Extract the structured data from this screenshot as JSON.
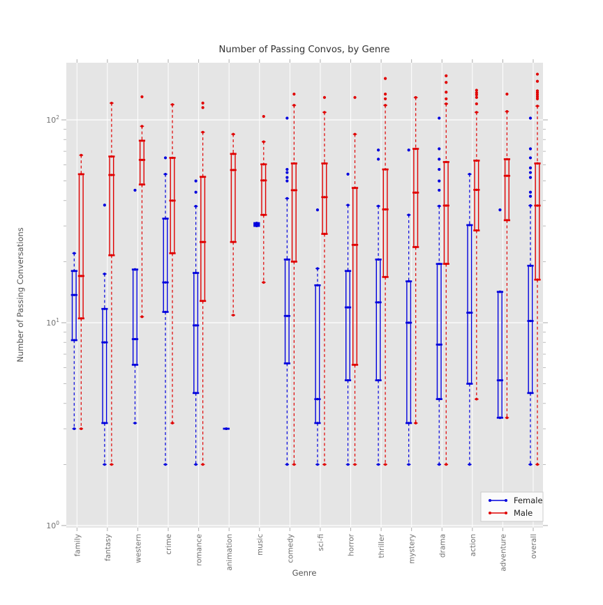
{
  "title": "Number of Passing Convos, by Genre",
  "axes": {
    "xlabel": "Genre",
    "ylabel": "Number of Passing Conversations",
    "yticks": [
      {
        "base": "10",
        "exp": "0",
        "value": 1
      },
      {
        "base": "10",
        "exp": "1",
        "value": 10
      },
      {
        "base": "10",
        "exp": "2",
        "value": 100
      }
    ],
    "ylim": [
      1,
      200
    ],
    "log_scale_y": true,
    "grid": true
  },
  "legend": {
    "items": [
      {
        "label": "Female",
        "color": "#0000dd"
      },
      {
        "label": "Male",
        "color": "#e00000"
      }
    ]
  },
  "colors": {
    "plot_bg": "#e5e5e5",
    "grid": "#ffffff",
    "tick": "#aaaaaa",
    "tick_label": "#707070",
    "axis_label": "#555555",
    "title": "#303030",
    "legend_bg": "#fbfbfb",
    "legend_border": "#cccccc"
  },
  "chart_data": {
    "type": "boxplot",
    "title": "Number of Passing Convos, by Genre",
    "xlabel": "Genre",
    "ylabel": "Number of Passing Conversations",
    "log_scale_y": true,
    "ylim": [
      1,
      200
    ],
    "legend_position": "lower right",
    "categories": [
      "family",
      "fantasy",
      "western",
      "crime",
      "romance",
      "animation",
      "music",
      "comedy",
      "sci-fi",
      "horror",
      "thriller",
      "mystery",
      "drama",
      "action",
      "adventure",
      "overall"
    ],
    "series": [
      {
        "name": "Female",
        "color": "#0000dd",
        "stats": [
          {
            "lo": 3,
            "q1": 8.2,
            "med": 13.7,
            "q3": 18,
            "hi": 22,
            "fliers": []
          },
          {
            "lo": 2,
            "q1": 3.2,
            "med": 8,
            "q3": 11.7,
            "hi": 17.4,
            "fliers": [
              38
            ]
          },
          {
            "lo": 3.2,
            "q1": 6.2,
            "med": 8.3,
            "q3": 18.3,
            "hi": 18.3,
            "fliers": [
              45
            ]
          },
          {
            "lo": 2,
            "q1": 11.3,
            "med": 15.8,
            "q3": 32.6,
            "hi": 54,
            "fliers": [
              65
            ]
          },
          {
            "lo": 2,
            "q1": 4.5,
            "med": 9.7,
            "q3": 17.6,
            "hi": 37.5,
            "fliers": [
              44,
              50
            ]
          },
          {
            "lo": 3,
            "q1": 3,
            "med": 3,
            "q3": 3,
            "hi": 3,
            "fliers": []
          },
          {
            "lo": 30,
            "q1": 30,
            "med": 30.5,
            "q3": 31,
            "hi": 31,
            "fliers": []
          },
          {
            "lo": 2,
            "q1": 6.3,
            "med": 10.8,
            "q3": 20.5,
            "hi": 41,
            "fliers": [
              50,
              52,
              55,
              57,
              102
            ]
          },
          {
            "lo": 2,
            "q1": 3.2,
            "med": 4.2,
            "q3": 15.3,
            "hi": 18.5,
            "fliers": [
              36
            ]
          },
          {
            "lo": 2,
            "q1": 5.2,
            "med": 11.9,
            "q3": 18,
            "hi": 38,
            "fliers": [
              54
            ]
          },
          {
            "lo": 2,
            "q1": 5.2,
            "med": 12.6,
            "q3": 20.5,
            "hi": 37.6,
            "fliers": [
              64,
              71
            ]
          },
          {
            "lo": 2,
            "q1": 3.2,
            "med": 10,
            "q3": 16,
            "hi": 34,
            "fliers": [
              71
            ]
          },
          {
            "lo": 2,
            "q1": 4.2,
            "med": 7.8,
            "q3": 19.5,
            "hi": 37.6,
            "fliers": [
              45,
              50,
              57,
              64,
              72,
              102
            ]
          },
          {
            "lo": 2,
            "q1": 5,
            "med": 11.2,
            "q3": 30.3,
            "hi": 54,
            "fliers": []
          },
          {
            "lo": 3.4,
            "q1": 3.4,
            "med": 5.2,
            "q3": 14.2,
            "hi": 14.2,
            "fliers": [
              36
            ]
          },
          {
            "lo": 2,
            "q1": 4.5,
            "med": 10.2,
            "q3": 19.1,
            "hi": 37.8,
            "fliers": [
              42,
              44,
              52,
              55,
              58,
              65,
              72,
              102
            ]
          }
        ]
      },
      {
        "name": "Male",
        "color": "#e00000",
        "stats": [
          {
            "lo": 3,
            "q1": 10.5,
            "med": 17,
            "q3": 54,
            "hi": 67,
            "fliers": []
          },
          {
            "lo": 2,
            "q1": 21.5,
            "med": 53.5,
            "q3": 66,
            "hi": 121,
            "fliers": []
          },
          {
            "lo": 10.7,
            "q1": 48,
            "med": 63.5,
            "q3": 79,
            "hi": 93,
            "fliers": [
              130
            ]
          },
          {
            "lo": 3.2,
            "q1": 22,
            "med": 40,
            "q3": 65,
            "hi": 119,
            "fliers": []
          },
          {
            "lo": 2,
            "q1": 12.8,
            "med": 25,
            "q3": 52.4,
            "hi": 87,
            "fliers": [
              115,
              121
            ]
          },
          {
            "lo": 10.9,
            "q1": 25,
            "med": 56.6,
            "q3": 68,
            "hi": 85,
            "fliers": []
          },
          {
            "lo": 15.8,
            "q1": 34,
            "med": 50.3,
            "q3": 60.4,
            "hi": 78,
            "fliers": [
              104
            ]
          },
          {
            "lo": 2,
            "q1": 20,
            "med": 45,
            "q3": 61,
            "hi": 118,
            "fliers": [
              134
            ]
          },
          {
            "lo": 2,
            "q1": 27.4,
            "med": 41.6,
            "q3": 61,
            "hi": 109,
            "fliers": [
              129
            ]
          },
          {
            "lo": 2,
            "q1": 6.2,
            "med": 24.2,
            "q3": 46.2,
            "hi": 85,
            "fliers": [
              129
            ]
          },
          {
            "lo": 2,
            "q1": 16.8,
            "med": 36.2,
            "q3": 57,
            "hi": 118,
            "fliers": [
              127,
              134,
              160
            ]
          },
          {
            "lo": 3.2,
            "q1": 23.6,
            "med": 43.8,
            "q3": 72,
            "hi": 129,
            "fliers": []
          },
          {
            "lo": 2,
            "q1": 19.5,
            "med": 37.8,
            "q3": 62,
            "hi": 120,
            "fliers": [
              127,
              137,
              153,
              165
            ]
          },
          {
            "lo": 4.2,
            "q1": 28.5,
            "med": 45.2,
            "q3": 63,
            "hi": 109,
            "fliers": [
              120,
              129,
              133,
              136,
              140
            ]
          },
          {
            "lo": 3.4,
            "q1": 32,
            "med": 53,
            "q3": 64,
            "hi": 110,
            "fliers": [
              134
            ]
          },
          {
            "lo": 2,
            "q1": 16.3,
            "med": 37.8,
            "q3": 61,
            "hi": 117,
            "fliers": [
              127,
              130,
              133,
              136,
              139,
              155,
              168
            ]
          }
        ]
      }
    ]
  }
}
